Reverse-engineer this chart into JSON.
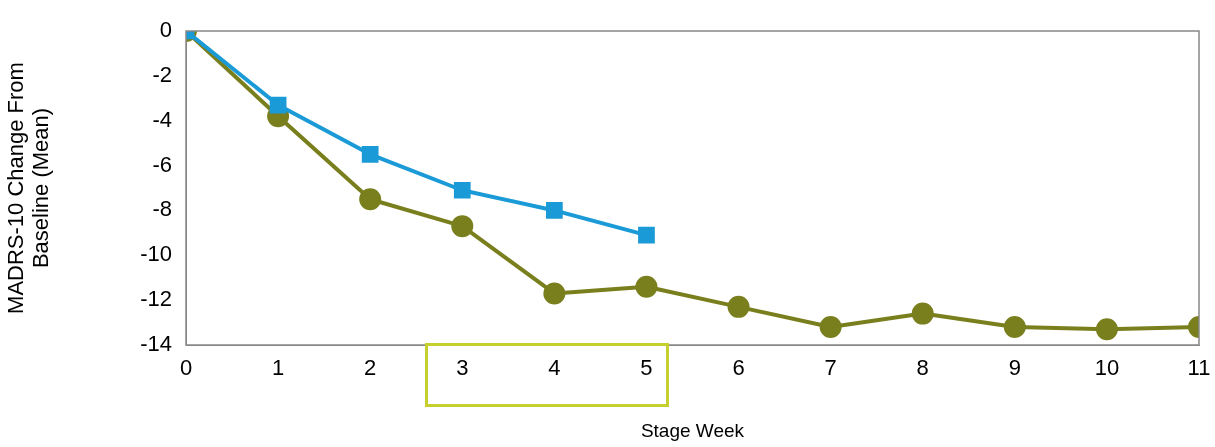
{
  "chart_data": {
    "type": "line",
    "xlabel": "Stage Week",
    "ylabel": "MADRS-10 Change From Baseline (Mean)",
    "x": [
      0,
      1,
      2,
      3,
      4,
      5,
      6,
      7,
      8,
      9,
      10,
      11
    ],
    "series": [
      {
        "color": "#1a9ad6",
        "marker": "square",
        "x": [
          0,
          1,
          2,
          3,
          4,
          5
        ],
        "values": [
          0,
          -3.3,
          -5.5,
          -7.1,
          -8.0,
          -9.1
        ]
      },
      {
        "color": "#7a7f1e",
        "marker": "circle",
        "values": [
          0,
          -3.8,
          -7.5,
          -8.7,
          -11.7,
          -11.4,
          -12.3,
          -13.2,
          -12.6,
          -13.2,
          -13.3,
          -13.2
        ]
      }
    ],
    "xlim": [
      0,
      11
    ],
    "xticks": [
      0,
      1,
      2,
      3,
      4,
      5,
      6,
      7,
      8,
      9,
      10,
      11
    ],
    "ylim": [
      -14,
      0
    ],
    "yticks": [
      -14,
      -12,
      -10,
      -8,
      -6,
      -4,
      -2,
      0
    ],
    "grid": false,
    "legend": false,
    "line_style": "solid"
  }
}
